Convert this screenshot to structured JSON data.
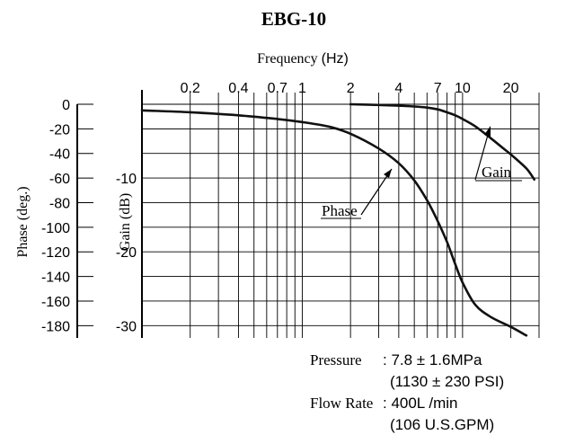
{
  "chart_data": {
    "type": "line",
    "title": "EBG-10",
    "x_axis": {
      "label_prefix": "Frequency ",
      "label_unit": "(Hz)",
      "scale": "log",
      "range": [
        0.1,
        30
      ],
      "tick_labels": [
        "0.2",
        "0.4",
        "0.7",
        "1",
        "2",
        "4",
        "7",
        "10",
        "20"
      ],
      "tick_values": [
        0.2,
        0.4,
        0.7,
        1,
        2,
        4,
        7,
        10,
        20
      ]
    },
    "y_axis_phase": {
      "label": "Phase (deg.)",
      "range": [
        -190,
        0
      ],
      "tick_labels": [
        "0",
        "-20",
        "-40",
        "-60",
        "-80",
        "-100",
        "-120",
        "-140",
        "-160",
        "-180"
      ],
      "tick_values": [
        0,
        -20,
        -40,
        -60,
        -80,
        -100,
        -120,
        -140,
        -160,
        -180
      ]
    },
    "y_axis_gain": {
      "label": "Gain (dB)",
      "range": [
        -31.67,
        0
      ],
      "tick_labels": [
        "-10",
        "-20",
        "-30"
      ],
      "tick_values": [
        -10,
        -20,
        -30
      ]
    },
    "grid": true,
    "series": [
      {
        "name": "Phase",
        "axis": "phase",
        "x": [
          0.1,
          0.2,
          0.4,
          0.7,
          1,
          1.5,
          2,
          3,
          4,
          5,
          6,
          7,
          8,
          9,
          10,
          12,
          15,
          20,
          25
        ],
        "y": [
          -5,
          -6.5,
          -9,
          -12,
          -14.5,
          -18.5,
          -24,
          -36,
          -48,
          -62,
          -78,
          -95,
          -112,
          -130,
          -145,
          -163,
          -173,
          -181,
          -188
        ]
      },
      {
        "name": "Gain",
        "axis": "gain",
        "x": [
          2,
          3,
          4,
          5,
          6,
          7,
          8,
          9,
          10,
          12,
          15,
          18,
          20,
          25,
          28
        ],
        "y": [
          0,
          -0.1,
          -0.2,
          -0.3,
          -0.45,
          -0.7,
          -1.1,
          -1.5,
          -2.0,
          -3.0,
          -4.6,
          -6.0,
          -6.8,
          -8.7,
          -10.2
        ]
      }
    ],
    "annotations": {
      "phase_label": "Phase",
      "gain_label": "Gain"
    }
  },
  "conditions": {
    "pressure_label": "Pressure",
    "pressure_value": ": 7.8 ± 1.6MPa",
    "pressure_value_psi": "(1130 ± 230 PSI)",
    "flow_label": "Flow Rate",
    "flow_value": ": 400L /min",
    "flow_value_gpm": "(106 U.S.GPM)"
  }
}
